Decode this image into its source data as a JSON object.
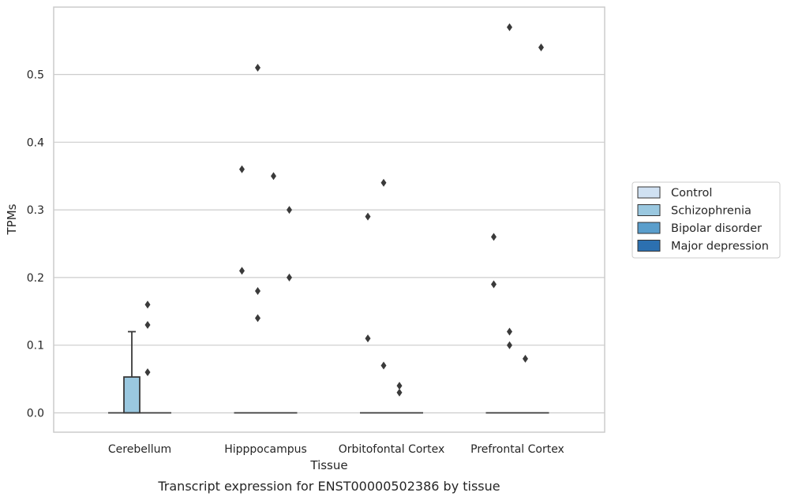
{
  "chart_data": {
    "type": "box",
    "title": "",
    "caption": "Transcript expression for ENST00000502386 by tissue",
    "xlabel": "Tissue",
    "ylabel": "TPMs",
    "ylim": [
      -0.028,
      0.6
    ],
    "yticks": [
      "0.0",
      "0.1",
      "0.2",
      "0.3",
      "0.4",
      "0.5"
    ],
    "ytick_values": [
      0.0,
      0.1,
      0.2,
      0.3,
      0.4,
      0.5
    ],
    "grid": "horizontal",
    "legend_position": "right",
    "categories": [
      "Cerebellum",
      "Hipppocampus",
      "Orbitofontal Cortex",
      "Prefrontal Cortex"
    ],
    "series": [
      {
        "name": "Control",
        "color": "#d0e1f2",
        "boxes": [
          {
            "q1": 0,
            "median": 0,
            "q3": 0,
            "whisker_low": 0,
            "whisker_high": 0,
            "outliers": []
          },
          {
            "q1": 0,
            "median": 0,
            "q3": 0,
            "whisker_low": 0,
            "whisker_high": 0,
            "outliers": [
              0.36,
              0.21
            ]
          },
          {
            "q1": 0,
            "median": 0,
            "q3": 0,
            "whisker_low": 0,
            "whisker_high": 0,
            "outliers": [
              0.29,
              0.11
            ]
          },
          {
            "q1": 0,
            "median": 0,
            "q3": 0,
            "whisker_low": 0,
            "whisker_high": 0,
            "outliers": [
              0.26,
              0.19
            ]
          }
        ]
      },
      {
        "name": "Schizophrenia",
        "color": "#9ac8e0",
        "boxes": [
          {
            "q1": 0,
            "median": 0,
            "q3": 0.053,
            "whisker_low": 0,
            "whisker_high": 0.12,
            "outliers": []
          },
          {
            "q1": 0,
            "median": 0,
            "q3": 0,
            "whisker_low": 0,
            "whisker_high": 0,
            "outliers": [
              0.51,
              0.18,
              0.14
            ]
          },
          {
            "q1": 0,
            "median": 0,
            "q3": 0,
            "whisker_low": 0,
            "whisker_high": 0,
            "outliers": [
              0.34,
              0.07
            ]
          },
          {
            "q1": 0,
            "median": 0,
            "q3": 0,
            "whisker_low": 0,
            "whisker_high": 0,
            "outliers": [
              0.57,
              0.12,
              0.1
            ]
          }
        ]
      },
      {
        "name": "Bipolar disorder",
        "color": "#5a9ecc",
        "boxes": [
          {
            "q1": 0,
            "median": 0,
            "q3": 0,
            "whisker_low": 0,
            "whisker_high": 0,
            "outliers": [
              0.16,
              0.13,
              0.06
            ]
          },
          {
            "q1": 0,
            "median": 0,
            "q3": 0,
            "whisker_low": 0,
            "whisker_high": 0,
            "outliers": [
              0.35
            ]
          },
          {
            "q1": 0,
            "median": 0,
            "q3": 0,
            "whisker_low": 0,
            "whisker_high": 0,
            "outliers": [
              0.04,
              0.03
            ]
          },
          {
            "q1": 0,
            "median": 0,
            "q3": 0,
            "whisker_low": 0,
            "whisker_high": 0,
            "outliers": [
              0.08
            ]
          }
        ]
      },
      {
        "name": "Major depression",
        "color": "#2c70b0",
        "boxes": [
          {
            "q1": 0,
            "median": 0,
            "q3": 0,
            "whisker_low": 0,
            "whisker_high": 0,
            "outliers": []
          },
          {
            "q1": 0,
            "median": 0,
            "q3": 0,
            "whisker_low": 0,
            "whisker_high": 0,
            "outliers": [
              0.3,
              0.2
            ]
          },
          {
            "q1": 0,
            "median": 0,
            "q3": 0,
            "whisker_low": 0,
            "whisker_high": 0,
            "outliers": []
          },
          {
            "q1": 0,
            "median": 0,
            "q3": 0,
            "whisker_low": 0,
            "whisker_high": 0,
            "outliers": [
              0.54
            ]
          }
        ]
      }
    ]
  }
}
